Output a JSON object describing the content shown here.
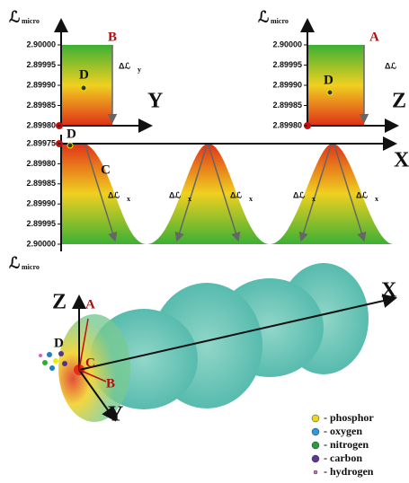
{
  "top_left": {
    "axis_symbol": "ℒ",
    "axis_subscript": "micro",
    "ticks": [
      "2.90000",
      "2.89995",
      "2.89990",
      "2.89985",
      "2.89980"
    ],
    "corner_label": "B",
    "point_label": "D",
    "delta_symbol": "Δℒ",
    "delta_subscript": "y",
    "axis_label": "Y"
  },
  "top_right": {
    "axis_symbol": "ℒ",
    "axis_subscript": "micro",
    "ticks": [
      "2.90000",
      "2.89995",
      "2.89990",
      "2.89985",
      "2.89980"
    ],
    "corner_label": "A",
    "point_label": "D",
    "delta_symbol": "Δℒ",
    "axis_label": "Z"
  },
  "middle": {
    "ticks": [
      "2.89975",
      "2.89980",
      "2.89985",
      "2.89990",
      "2.89995",
      "2.90000"
    ],
    "point_labels": [
      "D",
      "C"
    ],
    "delta_labels": [
      {
        "symbol": "Δℒ",
        "subscript": "x"
      },
      {
        "symbol": "Δℒ",
        "subscript": "x"
      },
      {
        "symbol": "Δℒ",
        "subscript": "x"
      },
      {
        "symbol": "Δℒ",
        "subscript": "x"
      },
      {
        "symbol": "Δℒ",
        "subscript": "x"
      }
    ],
    "axis_label": "X",
    "bottom_symbol": "ℒ",
    "bottom_subscript": "micro"
  },
  "bottom": {
    "axis_labels": [
      "Z",
      "Y",
      "X"
    ],
    "points": [
      "A",
      "D",
      "C",
      "B"
    ],
    "legend": [
      "- phosphor",
      "- oxygen",
      "- nitrogen",
      "- carbon",
      "- hydrogen"
    ]
  }
}
